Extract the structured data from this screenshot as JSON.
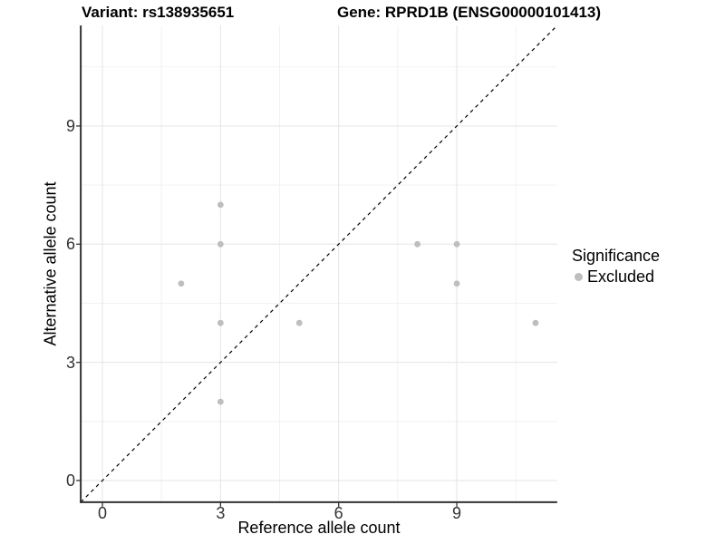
{
  "chart_data": {
    "type": "scatter",
    "title_left": "Variant: rs138935651",
    "title_right": "Gene: RPRD1B (ENSG00000101413)",
    "xlabel": "Reference allele count",
    "ylabel": "Alternative allele count",
    "xlim": [
      -0.55,
      11.55
    ],
    "ylim": [
      -0.55,
      11.55
    ],
    "xticks": [
      0,
      3,
      6,
      9
    ],
    "yticks": [
      0,
      3,
      6,
      9
    ],
    "minor_gridlines": [
      1.5,
      4.5,
      7.5,
      10.5
    ],
    "grid": true,
    "identity_line": {
      "style": "dashed",
      "color": "#000000",
      "slope": 1,
      "intercept": 0
    },
    "series": [
      {
        "name": "Excluded",
        "color": "#bebebe",
        "points": [
          [
            2,
            5
          ],
          [
            3,
            2
          ],
          [
            3,
            4
          ],
          [
            3,
            6
          ],
          [
            3,
            7
          ],
          [
            5,
            4
          ],
          [
            8,
            6
          ],
          [
            9,
            5
          ],
          [
            9,
            6
          ],
          [
            11,
            4
          ]
        ]
      }
    ],
    "legend": {
      "title": "Significance",
      "position": "right",
      "items": [
        {
          "label": "Excluded",
          "color": "#bebebe"
        }
      ]
    }
  }
}
